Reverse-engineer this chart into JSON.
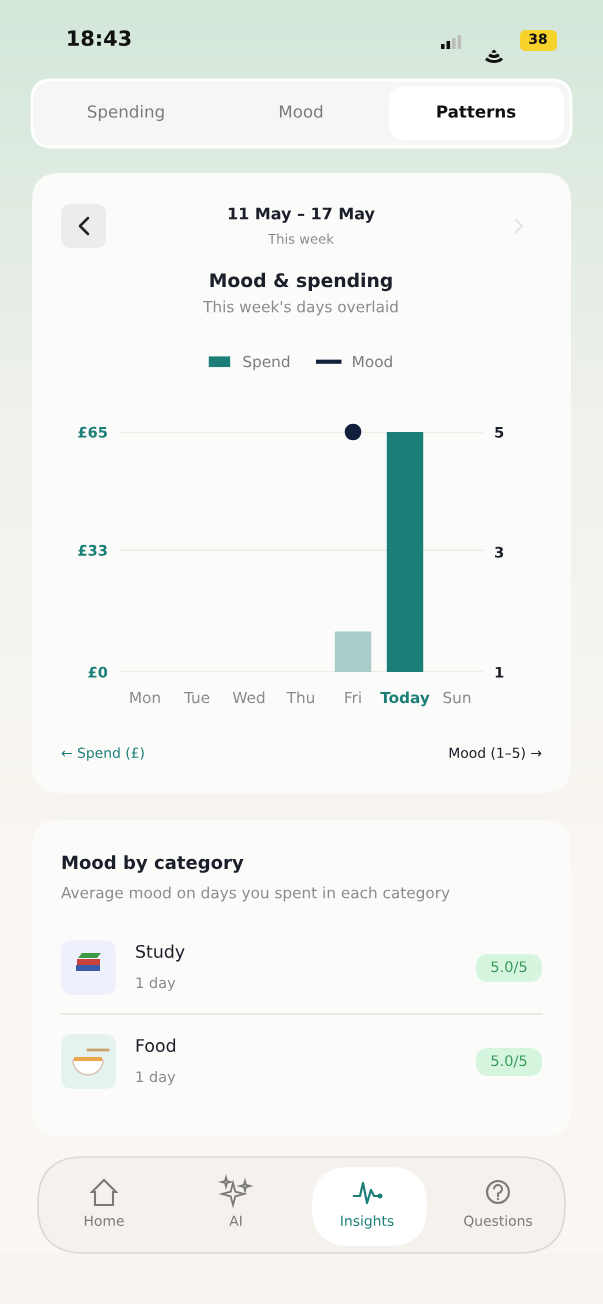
{
  "chart_data": [
    {
      "type": "bar",
      "title": "Mood & spending",
      "subtitle": "This week's days overlaid",
      "ylabel": "← Spend (£)",
      "y2label": "Mood (1–5) →",
      "annotations": [
        "18:43",
        "38",
        "Spending",
        "Mood",
        "Patterns",
        "11 May – 17 May",
        "This week"
      ],
      "categories": [
        "Mon",
        "Tue",
        "Wed",
        "Thu",
        "Fri",
        "Today",
        "Sun"
      ],
      "series": [
        {
          "name": "Spend",
          "type": "bar",
          "color": "#1b7f78",
          "colors": [
            "#a6cdc8",
            "#a6cdc8",
            "#a6cdc8",
            "#a6cdc8",
            "#a6cdc8",
            "#1b7f78",
            "#a6cdc8"
          ],
          "values": [
            null,
            null,
            null,
            null,
            11,
            65,
            null
          ]
        },
        {
          "name": "Mood",
          "type": "line",
          "axis": "y2",
          "color": "#13203d",
          "marker": "circle",
          "values": [
            null,
            null,
            null,
            null,
            5,
            null,
            null
          ]
        }
      ],
      "ylim": [
        0,
        65
      ],
      "yticks": [
        {
          "value": 0,
          "label": "£0"
        },
        {
          "value": 33,
          "label": "£33"
        },
        {
          "value": 65,
          "label": "£65"
        }
      ],
      "y2lim": [
        1,
        5
      ],
      "y2ticks": [
        1,
        3,
        5
      ],
      "grid": "y",
      "legend": "top"
    },
    {
      "type": "other",
      "title": "Mood by category",
      "subtitle": "Average mood on days you spent in each category",
      "annotations": [
        "Study",
        "1 day",
        "5.0/5",
        "Food",
        "1 day",
        "5.0/5",
        "Home",
        "AI",
        "Insights",
        "Questions"
      ]
    }
  ]
}
